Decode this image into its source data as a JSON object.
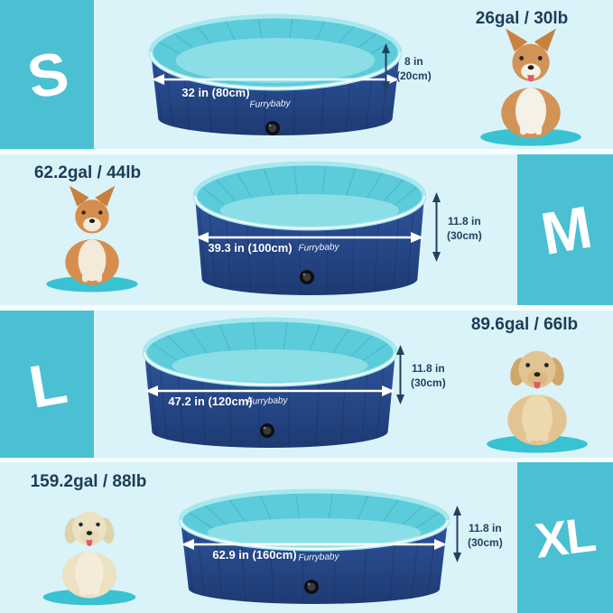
{
  "brand": "Furrybaby",
  "colors": {
    "row_background": "#d9f3f9",
    "size_badge": "#4bc0d3",
    "pool_wall_navy_top": "#2f549c",
    "pool_wall_navy_bottom": "#1d3a72",
    "pool_inner_wall": "#5ccbda",
    "pool_floor": "#8bdde6",
    "pool_rim": "#a6e8ee",
    "dimension_text_navy": "#21415f",
    "capacity_text": "#1d3c58",
    "dimension_arrow_white": "#ffffff",
    "dog_mat_teal": "#38c2d2"
  },
  "rows": [
    {
      "size": "S",
      "capacity": "26gal / 30lb",
      "width_label": "32 in (80cm)",
      "height_in": "8 in",
      "height_cm": "(20cm)",
      "dog": "corgi"
    },
    {
      "size": "M",
      "capacity": "62.2gal / 44lb",
      "width_label": "39.3 in (100cm)",
      "height_in": "11.8 in",
      "height_cm": "(30cm)",
      "dog": "shiba-inu"
    },
    {
      "size": "L",
      "capacity": "89.6gal / 66lb",
      "width_label": "47.2 in (120cm)",
      "height_in": "11.8 in",
      "height_cm": "(30cm)",
      "dog": "golden-retriever"
    },
    {
      "size": "XL",
      "capacity": "159.2gal / 88lb",
      "width_label": "62.9 in (160cm)",
      "height_in": "11.8 in",
      "height_cm": "(30cm)",
      "dog": "labrador"
    }
  ],
  "dogs": [
    {
      "name": "corgi",
      "ears": "pointy",
      "fur": "#d29357",
      "chest": "#f6f1e7",
      "muzzle": "#f6f1e7",
      "ear": "#c9813f",
      "tongue": true,
      "mat": "#38c2d2"
    },
    {
      "name": "shiba-inu",
      "ears": "pointy",
      "fur": "#d68e4e",
      "chest": "#f3ead9",
      "muzzle": "#f3ead9",
      "ear": "#c87f3d",
      "tongue": false,
      "mat": "#38c2d2"
    },
    {
      "name": "golden-retriever",
      "ears": "floppy",
      "fur": "#e2c492",
      "chest": "#ecd9ae",
      "muzzle": "#dcb87e",
      "ear": "#cfa76a",
      "tongue": true,
      "mat": "#38c2d2"
    },
    {
      "name": "labrador",
      "ears": "floppy",
      "fur": "#ece1c3",
      "chest": "#f4ecd8",
      "muzzle": "#e6d9b8",
      "ear": "#dfd2ac",
      "tongue": true,
      "mat": "#38c2d2"
    }
  ]
}
